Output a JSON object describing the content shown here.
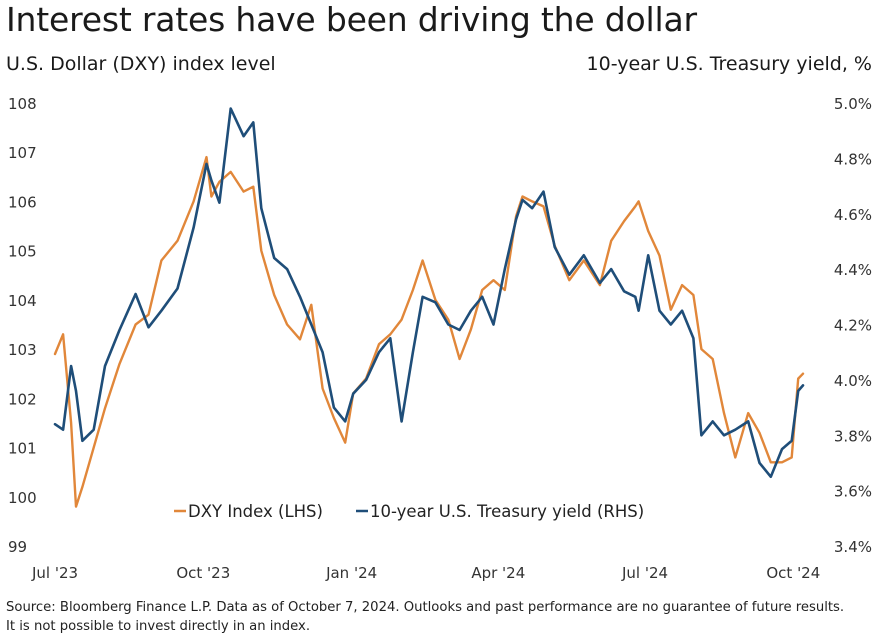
{
  "title": "Interest rates have been driving the dollar",
  "left_axis_title": "U.S. Dollar (DXY) index level",
  "right_axis_title": "10-year U.S. Treasury yield, %",
  "source_line1": "Source: Bloomberg Finance L.P. Data as of October 7, 2024. Outlooks and past performance are no guarantee of future results.",
  "source_line2": "It is not possible to invest directly in an index.",
  "colors": {
    "dxy": "#E1873A",
    "yield": "#1F4E79"
  },
  "chart_data": {
    "type": "line",
    "title": "Interest rates have been driving the dollar",
    "x_ticks": [
      "Jul '23",
      "Oct '23",
      "Jan '24",
      "Apr '24",
      "Jul '24",
      "Oct '24"
    ],
    "x_range": [
      "2023-07-01",
      "2024-10-07"
    ],
    "left_axis": {
      "label": "U.S. Dollar (DXY) index level",
      "range": [
        99,
        108
      ],
      "ticks": [
        "99",
        "100",
        "101",
        "102",
        "103",
        "104",
        "105",
        "106",
        "107",
        "108"
      ]
    },
    "right_axis": {
      "label": "10-year U.S. Treasury yield, %",
      "range": [
        3.4,
        5.0
      ],
      "ticks": [
        "3.4%",
        "3.6%",
        "3.8%",
        "4.0%",
        "4.2%",
        "4.4%",
        "4.6%",
        "4.8%",
        "5.0%"
      ]
    },
    "legend": [
      "DXY Index (LHS)",
      "10-year U.S. Treasury yield (RHS)"
    ],
    "legend_position": "bottom-center",
    "grid": false,
    "series": [
      {
        "name": "DXY Index (LHS)",
        "axis": "left",
        "x": [
          "2023-07-01",
          "2023-07-06",
          "2023-07-11",
          "2023-07-14",
          "2023-07-18",
          "2023-07-25",
          "2023-08-01",
          "2023-08-10",
          "2023-08-20",
          "2023-08-28",
          "2023-09-05",
          "2023-09-15",
          "2023-09-25",
          "2023-10-03",
          "2023-10-06",
          "2023-10-11",
          "2023-10-18",
          "2023-10-26",
          "2023-11-01",
          "2023-11-06",
          "2023-11-14",
          "2023-11-22",
          "2023-11-30",
          "2023-12-07",
          "2023-12-14",
          "2023-12-21",
          "2023-12-28",
          "2024-01-02",
          "2024-01-10",
          "2024-01-18",
          "2024-01-25",
          "2024-02-01",
          "2024-02-08",
          "2024-02-14",
          "2024-02-22",
          "2024-03-01",
          "2024-03-08",
          "2024-03-15",
          "2024-03-22",
          "2024-03-29",
          "2024-04-05",
          "2024-04-12",
          "2024-04-16",
          "2024-04-22",
          "2024-04-29",
          "2024-05-06",
          "2024-05-15",
          "2024-05-24",
          "2024-06-03",
          "2024-06-10",
          "2024-06-18",
          "2024-06-25",
          "2024-06-27",
          "2024-07-03",
          "2024-07-10",
          "2024-07-17",
          "2024-07-24",
          "2024-07-31",
          "2024-08-05",
          "2024-08-12",
          "2024-08-19",
          "2024-08-26",
          "2024-09-03",
          "2024-09-10",
          "2024-09-17",
          "2024-09-24",
          "2024-09-30",
          "2024-10-04",
          "2024-10-07"
        ],
        "y": [
          102.9,
          103.3,
          101.5,
          99.8,
          100.2,
          101.0,
          101.8,
          102.7,
          103.5,
          103.7,
          104.8,
          105.2,
          106.0,
          106.9,
          106.1,
          106.4,
          106.6,
          106.2,
          106.3,
          105.0,
          104.1,
          103.5,
          103.2,
          103.9,
          102.2,
          101.6,
          101.1,
          102.1,
          102.4,
          103.1,
          103.3,
          103.6,
          104.2,
          104.8,
          104.0,
          103.6,
          102.8,
          103.4,
          104.2,
          104.4,
          104.2,
          105.7,
          106.1,
          106.0,
          105.9,
          105.1,
          104.4,
          104.8,
          104.3,
          105.2,
          105.6,
          105.9,
          106.0,
          105.4,
          104.9,
          103.8,
          104.3,
          104.1,
          103.0,
          102.8,
          101.7,
          100.8,
          101.7,
          101.3,
          100.7,
          100.7,
          100.8,
          102.4,
          102.5
        ]
      },
      {
        "name": "10-year U.S. Treasury yield (RHS)",
        "axis": "right",
        "x": [
          "2023-07-01",
          "2023-07-06",
          "2023-07-11",
          "2023-07-14",
          "2023-07-18",
          "2023-07-25",
          "2023-08-01",
          "2023-08-10",
          "2023-08-20",
          "2023-08-28",
          "2023-09-05",
          "2023-09-15",
          "2023-09-25",
          "2023-10-03",
          "2023-10-06",
          "2023-10-11",
          "2023-10-18",
          "2023-10-26",
          "2023-11-01",
          "2023-11-06",
          "2023-11-14",
          "2023-11-22",
          "2023-11-30",
          "2023-12-07",
          "2023-12-14",
          "2023-12-21",
          "2023-12-28",
          "2024-01-02",
          "2024-01-10",
          "2024-01-18",
          "2024-01-25",
          "2024-02-01",
          "2024-02-08",
          "2024-02-14",
          "2024-02-22",
          "2024-03-01",
          "2024-03-08",
          "2024-03-15",
          "2024-03-22",
          "2024-03-29",
          "2024-04-05",
          "2024-04-12",
          "2024-04-16",
          "2024-04-22",
          "2024-04-29",
          "2024-05-06",
          "2024-05-15",
          "2024-05-24",
          "2024-06-03",
          "2024-06-10",
          "2024-06-18",
          "2024-06-25",
          "2024-06-27",
          "2024-07-03",
          "2024-07-10",
          "2024-07-17",
          "2024-07-24",
          "2024-07-31",
          "2024-08-05",
          "2024-08-12",
          "2024-08-19",
          "2024-08-26",
          "2024-09-03",
          "2024-09-10",
          "2024-09-17",
          "2024-09-24",
          "2024-09-30",
          "2024-10-04",
          "2024-10-07"
        ],
        "y": [
          3.84,
          3.82,
          4.05,
          3.96,
          3.78,
          3.82,
          4.05,
          4.18,
          4.31,
          4.19,
          4.25,
          4.33,
          4.55,
          4.78,
          4.72,
          4.64,
          4.98,
          4.88,
          4.93,
          4.62,
          4.44,
          4.4,
          4.3,
          4.2,
          4.1,
          3.9,
          3.85,
          3.95,
          4.0,
          4.1,
          4.15,
          3.85,
          4.1,
          4.3,
          4.28,
          4.2,
          4.18,
          4.25,
          4.3,
          4.2,
          4.4,
          4.58,
          4.65,
          4.62,
          4.68,
          4.48,
          4.38,
          4.45,
          4.35,
          4.4,
          4.32,
          4.3,
          4.25,
          4.45,
          4.25,
          4.2,
          4.25,
          4.15,
          3.8,
          3.85,
          3.8,
          3.82,
          3.85,
          3.7,
          3.65,
          3.75,
          3.78,
          3.96,
          3.98
        ]
      }
    ]
  }
}
